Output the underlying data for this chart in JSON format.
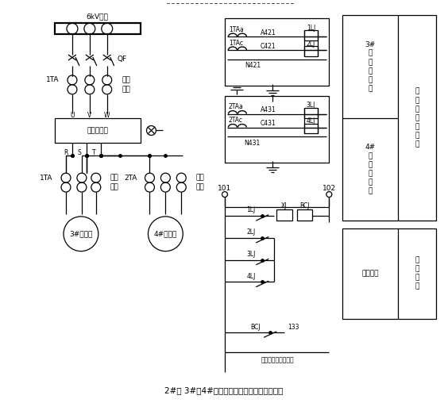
{
  "title": "2#炉 3#、4#引风机过流保护原理图（部分）",
  "bg_color": "#ffffff",
  "fig_width": 5.64,
  "fig_height": 5.08,
  "dpi": 100,
  "bus_label": "6kV母线",
  "qf_label": "QF",
  "ita1_label": "1TA",
  "prot1": "保护",
  "meas1": "测量",
  "hv_label": "高压变频器",
  "rsl_labels": [
    "R",
    "S",
    "T"
  ],
  "motor3_label": "3#引风机",
  "motor4_label": "4#引风机",
  "ita_left": "1TA",
  "ita_right": "2TA",
  "prot2": "保护",
  "meas2": "测量",
  "prot3": "保护",
  "meas3": "测量",
  "ta1a": "1TAa",
  "ta1c": "1TAc",
  "n421": "N421",
  "a421": "A421",
  "c421": "C421",
  "lj1": "1LJ",
  "lj2": "2LJ",
  "ta2a": "2TAa",
  "ta2c": "2TAc",
  "n431": "N431",
  "a431": "A431",
  "c431": "C431",
  "lj3": "3LJ",
  "lj4": "4LJ",
  "n101": "101",
  "n102": "102",
  "lj1b": "1LJ",
  "lj2b": "2LJ",
  "lj3b": "3LJ",
  "lj4b": "4LJ",
  "xj": "XJ",
  "bcj": "BCJ",
  "bcj2": "BCJ",
  "n133": "133",
  "isolator": "跳引风机高压断路器",
  "rb1_t": "3#\n引\n风\n机\n保\n护",
  "rb2_t": "4#\n引\n风\n机\n保\n护",
  "rc_t": "过\n流\n与\n速\n断\n保\n护",
  "rb3_t": "保护出口",
  "rc2_t": "控\n制\n回\n路",
  "uvw": [
    "U",
    "V",
    "W"
  ]
}
